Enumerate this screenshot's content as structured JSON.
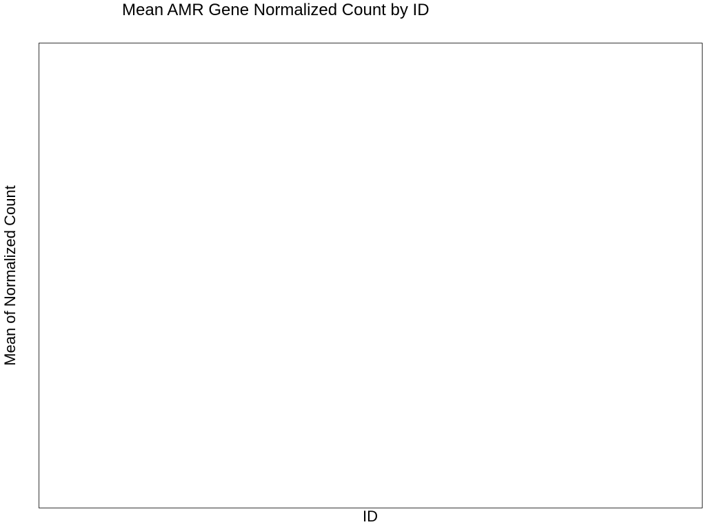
{
  "chart_data": {
    "type": "bar",
    "title": "Mean AMR Gene Normalized Count by ID",
    "xlabel": "ID",
    "ylabel": "Mean of Normalized Count",
    "categories": [],
    "values": [],
    "grid": false,
    "legend": "none",
    "colors": {
      "panel_border": "#333333",
      "background": "#ffffff",
      "text": "#000000"
    }
  }
}
